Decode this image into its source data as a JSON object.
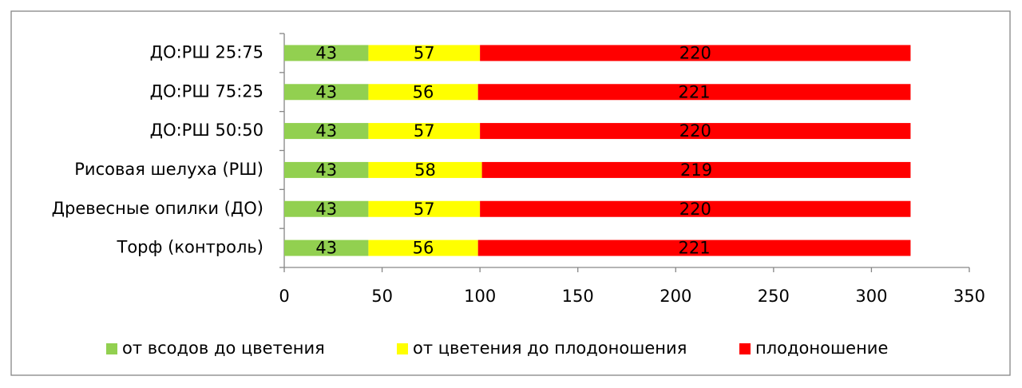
{
  "chart_data": {
    "type": "stacked-barh",
    "categories": [
      "ДО:РШ 25:75",
      "ДО:РШ 75:25",
      "ДО:РШ 50:50",
      "Рисовая шелуха (РШ)",
      "Древесные опилки (ДО)",
      "Торф (контроль)"
    ],
    "series": [
      {
        "name": "от всодов до цветения",
        "color": "#92d050",
        "values": [
          43,
          43,
          43,
          43,
          43,
          43
        ]
      },
      {
        "name": "от цветения до плодоношения",
        "color": "#ffff00",
        "values": [
          57,
          56,
          57,
          58,
          57,
          56
        ]
      },
      {
        "name": "плодоношение",
        "color": "#ff0000",
        "values": [
          220,
          221,
          220,
          219,
          220,
          221
        ]
      }
    ],
    "xlim": [
      0,
      350
    ],
    "xticks": [
      0,
      50,
      100,
      150,
      200,
      250,
      300,
      350
    ],
    "legend": "bottom",
    "grid": false
  }
}
